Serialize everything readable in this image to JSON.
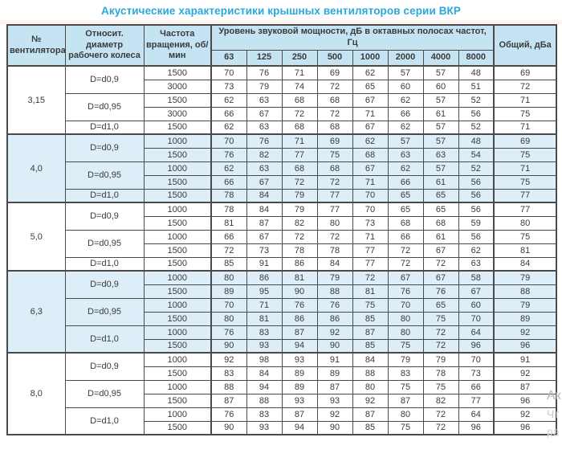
{
  "title": "Акустические характеристики крышных вентиляторов серии ВКР",
  "colors": {
    "accent_title": "#29a8dc",
    "header_bg": "#c5e3f2",
    "row_blue_bg": "#ddeef8",
    "row_white_bg": "#ffffff",
    "border": "#4a4a4a",
    "text": "#3a3a3a"
  },
  "watermark": {
    "fragments": [
      "Ак",
      "Чт",
      "ра"
    ]
  },
  "table": {
    "headers": {
      "fan_number": "№ вентилятора",
      "rel_diameter": "Относит. диаметр рабочего колеса",
      "rotation_freq": "Частота вращения, об/мин",
      "sound_power": "Уровень звуковой мощности, дБ в октавных полосах частот, Гц",
      "freq_bands": [
        "63",
        "125",
        "250",
        "500",
        "1000",
        "2000",
        "4000",
        "8000"
      ],
      "total": "Общий, дБа"
    },
    "sections": [
      {
        "fan": "3,15",
        "shade": "white",
        "groups": [
          {
            "diameter": "D=d0,9",
            "rows": [
              {
                "rpm": "1500",
                "levels": [
                  70,
                  76,
                  71,
                  69,
                  62,
                  57,
                  57,
                  48
                ],
                "total": 69
              },
              {
                "rpm": "3000",
                "levels": [
                  73,
                  79,
                  74,
                  72,
                  65,
                  60,
                  60,
                  51
                ],
                "total": 72
              }
            ]
          },
          {
            "diameter": "D=d0,95",
            "rows": [
              {
                "rpm": "1500",
                "levels": [
                  62,
                  63,
                  68,
                  68,
                  67,
                  62,
                  57,
                  52
                ],
                "total": 71
              },
              {
                "rpm": "3000",
                "levels": [
                  66,
                  67,
                  72,
                  72,
                  71,
                  66,
                  61,
                  56
                ],
                "total": 75
              }
            ]
          },
          {
            "diameter": "D=d1,0",
            "rows": [
              {
                "rpm": "1500",
                "levels": [
                  62,
                  63,
                  68,
                  68,
                  67,
                  62,
                  57,
                  52
                ],
                "total": 71
              }
            ]
          }
        ]
      },
      {
        "fan": "4,0",
        "shade": "blue",
        "groups": [
          {
            "diameter": "D=d0,9",
            "rows": [
              {
                "rpm": "1000",
                "levels": [
                  70,
                  76,
                  71,
                  69,
                  62,
                  57,
                  57,
                  48
                ],
                "total": 69
              },
              {
                "rpm": "1500",
                "levels": [
                  76,
                  82,
                  77,
                  75,
                  68,
                  63,
                  63,
                  54
                ],
                "total": 75
              }
            ]
          },
          {
            "diameter": "D=d0,95",
            "rows": [
              {
                "rpm": "1000",
                "levels": [
                  62,
                  63,
                  68,
                  68,
                  67,
                  62,
                  57,
                  52
                ],
                "total": 71
              },
              {
                "rpm": "1500",
                "levels": [
                  66,
                  67,
                  72,
                  72,
                  71,
                  66,
                  61,
                  56
                ],
                "total": 75
              }
            ]
          },
          {
            "diameter": "D=d1,0",
            "rows": [
              {
                "rpm": "1500",
                "levels": [
                  78,
                  84,
                  79,
                  77,
                  70,
                  65,
                  65,
                  56
                ],
                "total": 77
              }
            ]
          }
        ]
      },
      {
        "fan": "5,0",
        "shade": "white",
        "groups": [
          {
            "diameter": "D=d0,9",
            "rows": [
              {
                "rpm": "1000",
                "levels": [
                  78,
                  84,
                  79,
                  77,
                  70,
                  65,
                  65,
                  56
                ],
                "total": 77
              },
              {
                "rpm": "1500",
                "levels": [
                  81,
                  87,
                  82,
                  80,
                  73,
                  68,
                  68,
                  59
                ],
                "total": 80
              }
            ]
          },
          {
            "diameter": "D=d0,95",
            "rows": [
              {
                "rpm": "1000",
                "levels": [
                  66,
                  67,
                  72,
                  72,
                  71,
                  66,
                  61,
                  56
                ],
                "total": 75
              },
              {
                "rpm": "1500",
                "levels": [
                  72,
                  73,
                  78,
                  78,
                  77,
                  72,
                  67,
                  62
                ],
                "total": 81
              }
            ]
          },
          {
            "diameter": "D=d1,0",
            "rows": [
              {
                "rpm": "1500",
                "levels": [
                  85,
                  91,
                  86,
                  84,
                  77,
                  72,
                  72,
                  63
                ],
                "total": 84
              }
            ]
          }
        ]
      },
      {
        "fan": "6,3",
        "shade": "blue",
        "groups": [
          {
            "diameter": "D=d0,9",
            "rows": [
              {
                "rpm": "1000",
                "levels": [
                  80,
                  86,
                  81,
                  79,
                  72,
                  67,
                  67,
                  58
                ],
                "total": 79
              },
              {
                "rpm": "1500",
                "levels": [
                  89,
                  95,
                  90,
                  88,
                  81,
                  76,
                  76,
                  67
                ],
                "total": 88
              }
            ]
          },
          {
            "diameter": "D=d0,95",
            "rows": [
              {
                "rpm": "1000",
                "levels": [
                  70,
                  71,
                  76,
                  76,
                  75,
                  70,
                  65,
                  60
                ],
                "total": 79
              },
              {
                "rpm": "1500",
                "levels": [
                  80,
                  81,
                  86,
                  86,
                  85,
                  80,
                  75,
                  70
                ],
                "total": 89
              }
            ]
          },
          {
            "diameter": "D=d1,0",
            "rows": [
              {
                "rpm": "1000",
                "levels": [
                  76,
                  83,
                  87,
                  92,
                  87,
                  80,
                  72,
                  64
                ],
                "total": 92
              },
              {
                "rpm": "1500",
                "levels": [
                  90,
                  93,
                  94,
                  90,
                  85,
                  75,
                  72,
                  96
                ],
                "total": 96
              }
            ]
          }
        ]
      },
      {
        "fan": "8,0",
        "shade": "white",
        "groups": [
          {
            "diameter": "D=d0,9",
            "rows": [
              {
                "rpm": "1000",
                "levels": [
                  92,
                  98,
                  93,
                  91,
                  84,
                  79,
                  79,
                  70
                ],
                "total": 91
              },
              {
                "rpm": "1500",
                "levels": [
                  83,
                  84,
                  89,
                  89,
                  88,
                  83,
                  78,
                  73
                ],
                "total": 92
              }
            ]
          },
          {
            "diameter": "D=d0,95",
            "rows": [
              {
                "rpm": "1000",
                "levels": [
                  88,
                  94,
                  89,
                  87,
                  80,
                  75,
                  75,
                  66
                ],
                "total": 87
              },
              {
                "rpm": "1500",
                "levels": [
                  87,
                  88,
                  93,
                  93,
                  92,
                  87,
                  82,
                  77
                ],
                "total": 96
              }
            ]
          },
          {
            "diameter": "D=d1,0",
            "rows": [
              {
                "rpm": "1000",
                "levels": [
                  76,
                  83,
                  87,
                  92,
                  87,
                  80,
                  72,
                  64
                ],
                "total": 92
              },
              {
                "rpm": "1500",
                "levels": [
                  90,
                  93,
                  94,
                  90,
                  85,
                  75,
                  72,
                  96
                ],
                "total": 96
              }
            ]
          }
        ]
      }
    ]
  }
}
